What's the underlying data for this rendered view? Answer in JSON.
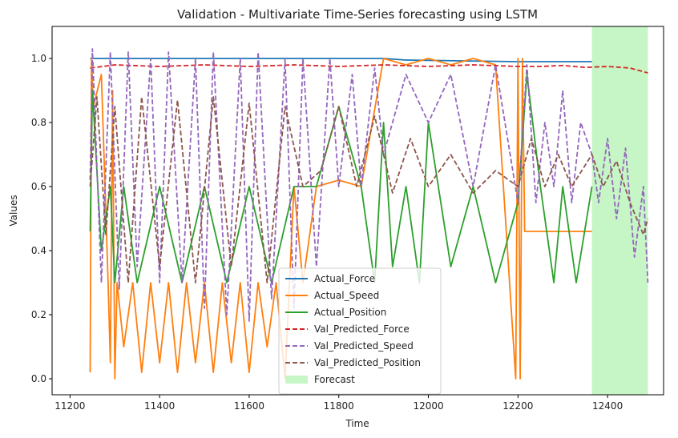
{
  "chart_data": {
    "type": "line",
    "title": "Validation - Multivariate Time-Series forecasting using LSTM",
    "xlabel": "Time",
    "ylabel": "Values",
    "xlim": [
      11160,
      12525
    ],
    "ylim": [
      -0.05,
      1.1
    ],
    "xticks": [
      11200,
      11400,
      11600,
      11800,
      12000,
      12200,
      12400
    ],
    "yticks": [
      0.0,
      0.2,
      0.4,
      0.6,
      0.8,
      1.0
    ],
    "grid": false,
    "legend_position": "lower center",
    "forecast_region": {
      "label": "Forecast",
      "x_start": 12365,
      "x_end": 12490,
      "color": "#c6f5c6"
    },
    "series": [
      {
        "name": "Actual_Force",
        "color": "#1f77b4",
        "style": "solid",
        "x": [
          11245,
          11900,
          11950,
          12200,
          12250,
          12300,
          12365
        ],
        "y": [
          1.0,
          1.0,
          0.995,
          0.99,
          0.99,
          0.99,
          0.99
        ]
      },
      {
        "name": "Actual_Speed",
        "color": "#ff7f0e",
        "style": "solid",
        "x": [
          11245,
          11248,
          11252,
          11270,
          11285,
          11290,
          11295,
          11300,
          11305,
          11320,
          11340,
          11360,
          11380,
          11400,
          11420,
          11440,
          11460,
          11480,
          11500,
          11520,
          11540,
          11560,
          11580,
          11600,
          11620,
          11640,
          11660,
          11680,
          11700,
          11720,
          11750,
          11800,
          11850,
          11900,
          11950,
          12000,
          12050,
          12100,
          12150,
          12195,
          12200,
          12205,
          12210,
          12215,
          12250,
          12300,
          12365
        ],
        "y": [
          0.02,
          1.0,
          0.85,
          0.95,
          0.3,
          0.05,
          0.9,
          0.0,
          0.3,
          0.1,
          0.3,
          0.02,
          0.3,
          0.05,
          0.3,
          0.02,
          0.3,
          0.05,
          0.3,
          0.02,
          0.3,
          0.05,
          0.3,
          0.02,
          0.3,
          0.1,
          0.3,
          0.0,
          0.6,
          0.3,
          0.6,
          0.62,
          0.6,
          1.0,
          0.98,
          1.0,
          0.98,
          1.0,
          0.98,
          0.0,
          1.0,
          0.0,
          1.0,
          0.46,
          0.46,
          0.46,
          0.46
        ]
      },
      {
        "name": "Actual_Position",
        "color": "#2ca02c",
        "style": "solid",
        "x": [
          11245,
          11250,
          11270,
          11290,
          11300,
          11320,
          11350,
          11400,
          11450,
          11500,
          11550,
          11600,
          11650,
          11700,
          11750,
          11800,
          11850,
          11880,
          11900,
          11920,
          11950,
          11980,
          12000,
          12050,
          12100,
          12150,
          12200,
          12220,
          12250,
          12280,
          12300,
          12330,
          12365
        ],
        "y": [
          0.46,
          0.9,
          0.4,
          0.6,
          0.3,
          0.6,
          0.3,
          0.6,
          0.3,
          0.6,
          0.3,
          0.6,
          0.3,
          0.6,
          0.6,
          0.85,
          0.6,
          0.3,
          0.8,
          0.35,
          0.6,
          0.3,
          0.8,
          0.35,
          0.6,
          0.3,
          0.55,
          0.95,
          0.6,
          0.3,
          0.6,
          0.3,
          0.6
        ]
      },
      {
        "name": "Val_Predicted_Force",
        "color": "#d62728",
        "style": "dashed",
        "x": [
          11245,
          11300,
          11400,
          11500,
          11600,
          11700,
          11800,
          11900,
          12000,
          12100,
          12200,
          12250,
          12300,
          12350,
          12400,
          12450,
          12490
        ],
        "y": [
          0.97,
          0.98,
          0.975,
          0.98,
          0.975,
          0.98,
          0.975,
          0.98,
          0.975,
          0.98,
          0.975,
          0.975,
          0.978,
          0.972,
          0.975,
          0.97,
          0.955
        ]
      },
      {
        "name": "Val_Predicted_Speed",
        "color": "#9467bd",
        "style": "dashed",
        "x": [
          11245,
          11250,
          11270,
          11290,
          11310,
          11330,
          11350,
          11380,
          11400,
          11420,
          11450,
          11480,
          11500,
          11520,
          11550,
          11580,
          11600,
          11620,
          11650,
          11680,
          11700,
          11720,
          11750,
          11780,
          11800,
          11830,
          11850,
          11880,
          11900,
          11950,
          12000,
          12050,
          12100,
          12150,
          12200,
          12220,
          12240,
          12260,
          12280,
          12300,
          12320,
          12340,
          12365,
          12380,
          12400,
          12420,
          12440,
          12460,
          12480,
          12490
        ],
        "y": [
          0.62,
          1.03,
          0.3,
          1.02,
          0.28,
          1.02,
          0.35,
          1.0,
          0.3,
          1.02,
          0.3,
          1.0,
          0.22,
          1.02,
          0.2,
          1.0,
          0.18,
          1.02,
          0.25,
          1.0,
          0.22,
          1.0,
          0.35,
          1.0,
          0.6,
          0.95,
          0.6,
          0.97,
          0.7,
          0.95,
          0.8,
          0.95,
          0.6,
          0.98,
          0.55,
          0.98,
          0.55,
          0.8,
          0.6,
          0.9,
          0.55,
          0.8,
          0.7,
          0.55,
          0.75,
          0.5,
          0.72,
          0.38,
          0.6,
          0.3
        ]
      },
      {
        "name": "Val_Predicted_Position",
        "color": "#8c564b",
        "style": "dashed",
        "x": [
          11245,
          11260,
          11280,
          11300,
          11330,
          11360,
          11400,
          11440,
          11480,
          11520,
          11560,
          11600,
          11640,
          11680,
          11720,
          11760,
          11800,
          11840,
          11880,
          11920,
          11960,
          12000,
          12050,
          12100,
          12150,
          12200,
          12230,
          12260,
          12290,
          12320,
          12365,
          12390,
          12420,
          12450,
          12480,
          12490
        ],
        "y": [
          0.6,
          0.88,
          0.45,
          0.85,
          0.3,
          0.88,
          0.35,
          0.87,
          0.3,
          0.88,
          0.35,
          0.86,
          0.3,
          0.85,
          0.6,
          0.65,
          0.85,
          0.6,
          0.82,
          0.58,
          0.75,
          0.6,
          0.7,
          0.58,
          0.65,
          0.6,
          0.75,
          0.6,
          0.7,
          0.6,
          0.7,
          0.6,
          0.68,
          0.55,
          0.45,
          0.5
        ]
      }
    ]
  }
}
